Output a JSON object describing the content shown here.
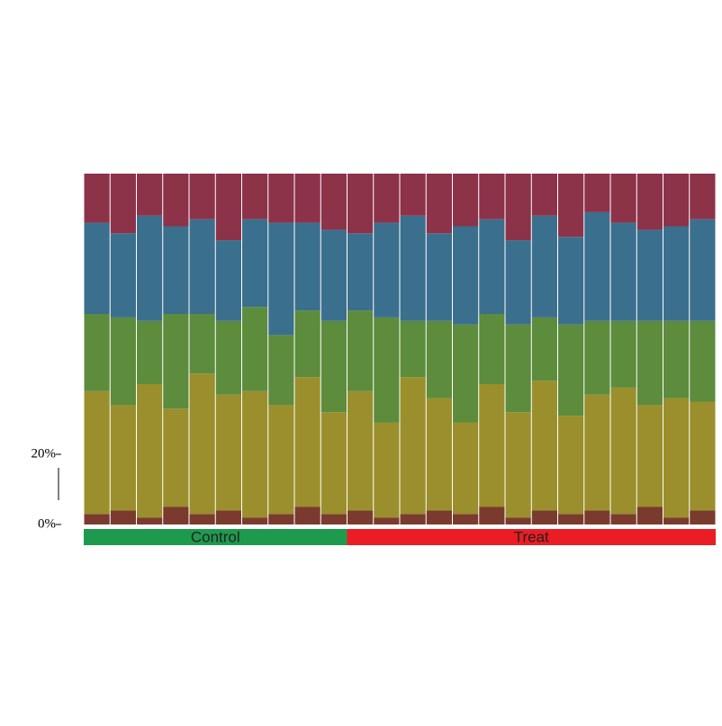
{
  "chart_data": {
    "type": "stacked_bar",
    "ylim": [
      0,
      100
    ],
    "yticks": [
      {
        "value": 0,
        "label": "0%"
      },
      {
        "value": 20,
        "label": "20%"
      }
    ],
    "series": [
      {
        "color": "#7a3b2e",
        "values": [
          3,
          4,
          2,
          5,
          3,
          4,
          2,
          3,
          5,
          3,
          4,
          2,
          3,
          4,
          3,
          5,
          2,
          4,
          3,
          4,
          3,
          5,
          2,
          4
        ]
      },
      {
        "color": "#9a8f2c",
        "values": [
          35,
          30,
          38,
          28,
          40,
          33,
          36,
          31,
          37,
          29,
          34,
          27,
          39,
          32,
          26,
          35,
          30,
          37,
          28,
          33,
          36,
          29,
          34,
          31
        ]
      },
      {
        "color": "#5c8c3c",
        "values": [
          22,
          25,
          18,
          27,
          17,
          21,
          24,
          20,
          19,
          26,
          23,
          30,
          16,
          22,
          28,
          20,
          25,
          18,
          26,
          21,
          19,
          24,
          22,
          23
        ]
      },
      {
        "color": "#3b6f8e",
        "values": [
          26,
          24,
          30,
          25,
          27,
          23,
          25,
          32,
          25,
          26,
          22,
          27,
          30,
          25,
          28,
          27,
          24,
          29,
          25,
          31,
          28,
          26,
          27,
          29
        ]
      },
      {
        "color": "#8c3249",
        "values": [
          14,
          17,
          12,
          15,
          13,
          19,
          13,
          14,
          14,
          16,
          17,
          14,
          12,
          17,
          15,
          13,
          19,
          12,
          18,
          11,
          14,
          16,
          15,
          13
        ]
      }
    ],
    "groups": [
      {
        "name": "Control",
        "color": "#1e9a4e",
        "samples": 10
      },
      {
        "name": "Treat",
        "color": "#ec1c24",
        "samples": 14
      }
    ]
  }
}
